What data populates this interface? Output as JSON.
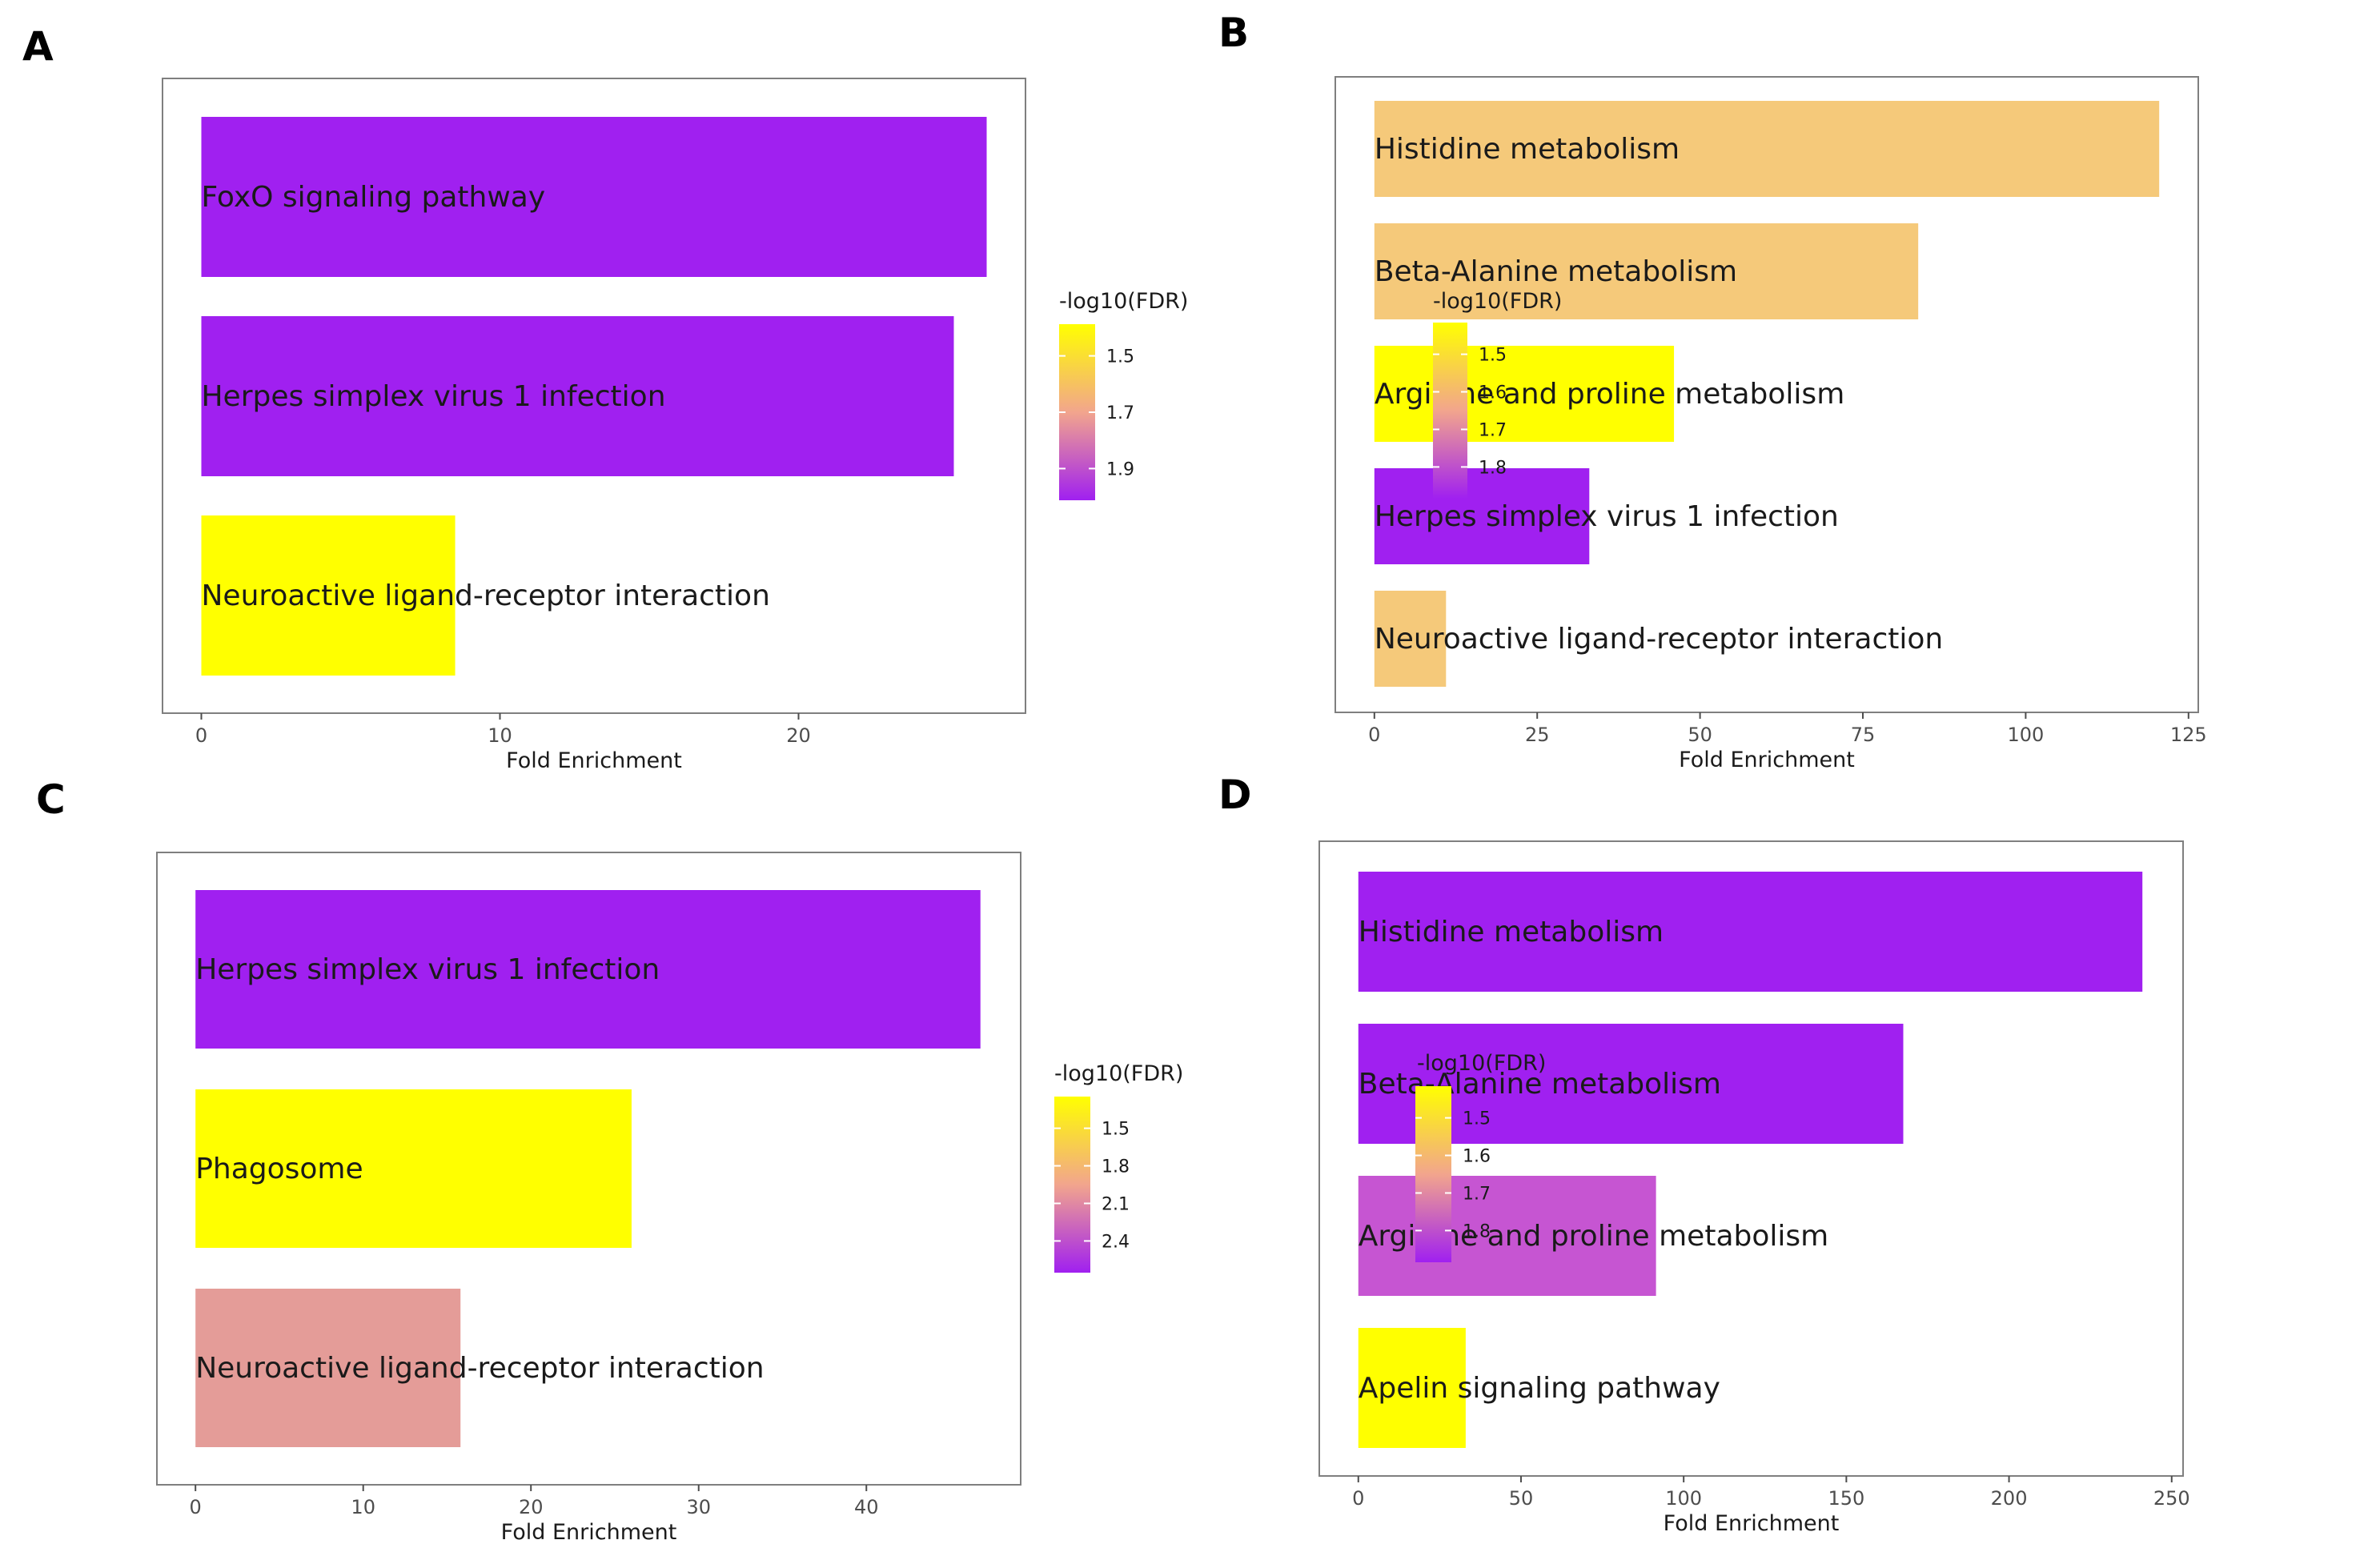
{
  "figure": {
    "label_color": "#000000",
    "low_color": "#FFFF00",
    "mid_color": "#F2A58D",
    "high_color": "#A020F0"
  },
  "chart_data": [
    {
      "panel": "A",
      "type": "bar",
      "orientation": "horizontal",
      "categories": [
        "FoxO signaling pathway",
        "Herpes simplex virus 1 infection",
        "Neuroactive ligand-receptor interaction"
      ],
      "values": [
        26.3,
        25.2,
        8.5
      ],
      "bar_colors": [
        "#A020F0",
        "#A020F0",
        "#FFFF00"
      ],
      "xlabel": "Fold Enrichment",
      "xlim": [
        -1.3,
        27.6
      ],
      "xticks": [
        0,
        10,
        20
      ],
      "legend": {
        "title": "-log10(FDR)",
        "ticks": [
          "1.5",
          "1.7",
          "1.9"
        ],
        "position": "right"
      }
    },
    {
      "panel": "B",
      "type": "bar",
      "orientation": "horizontal",
      "categories": [
        "Histidine metabolism",
        "Beta-Alanine metabolism",
        "Arginine and proline metabolism",
        "Herpes simplex virus 1 infection",
        "Neuroactive ligand-receptor interaction"
      ],
      "values": [
        120.5,
        83.5,
        46,
        33,
        11
      ],
      "bar_colors": [
        "#F5C97A",
        "#F5C97A",
        "#FFFF00",
        "#A020F0",
        "#F5C97A"
      ],
      "xlabel": "Fold Enrichment",
      "xlim": [
        -6,
        126.5
      ],
      "xticks": [
        0,
        25,
        50,
        75,
        100,
        125
      ],
      "legend": {
        "title": "-log10(FDR)",
        "ticks": [
          "1.5",
          "1.6",
          "1.7",
          "1.8"
        ],
        "position": "right"
      }
    },
    {
      "panel": "C",
      "type": "bar",
      "orientation": "horizontal",
      "categories": [
        "Herpes simplex virus 1 infection",
        "Phagosome",
        "Neuroactive ligand-receptor interaction"
      ],
      "values": [
        46.8,
        26,
        15.8
      ],
      "bar_colors": [
        "#A020F0",
        "#FFFF00",
        "#E49C98"
      ],
      "xlabel": "Fold Enrichment",
      "xlim": [
        -2.3,
        49.2
      ],
      "xticks": [
        0,
        10,
        20,
        30,
        40
      ],
      "legend": {
        "title": "-log10(FDR)",
        "ticks": [
          "1.5",
          "1.8",
          "2.1",
          "2.4"
        ],
        "position": "right"
      }
    },
    {
      "panel": "D",
      "type": "bar",
      "orientation": "horizontal",
      "categories": [
        "Histidine metabolism",
        "Beta-Alanine metabolism",
        "Arginine and proline metabolism",
        "Apelin signaling pathway"
      ],
      "values": [
        241,
        167.5,
        91.5,
        33
      ],
      "bar_colors": [
        "#A020F0",
        "#A020F0",
        "#C655D2",
        "#FFFF00"
      ],
      "xlabel": "Fold Enrichment",
      "xlim": [
        -12,
        253.5
      ],
      "xticks": [
        0,
        50,
        100,
        150,
        200,
        250
      ],
      "legend": {
        "title": "-log10(FDR)",
        "ticks": [
          "1.5",
          "1.6",
          "1.7",
          "1.8"
        ],
        "position": "right"
      }
    }
  ]
}
